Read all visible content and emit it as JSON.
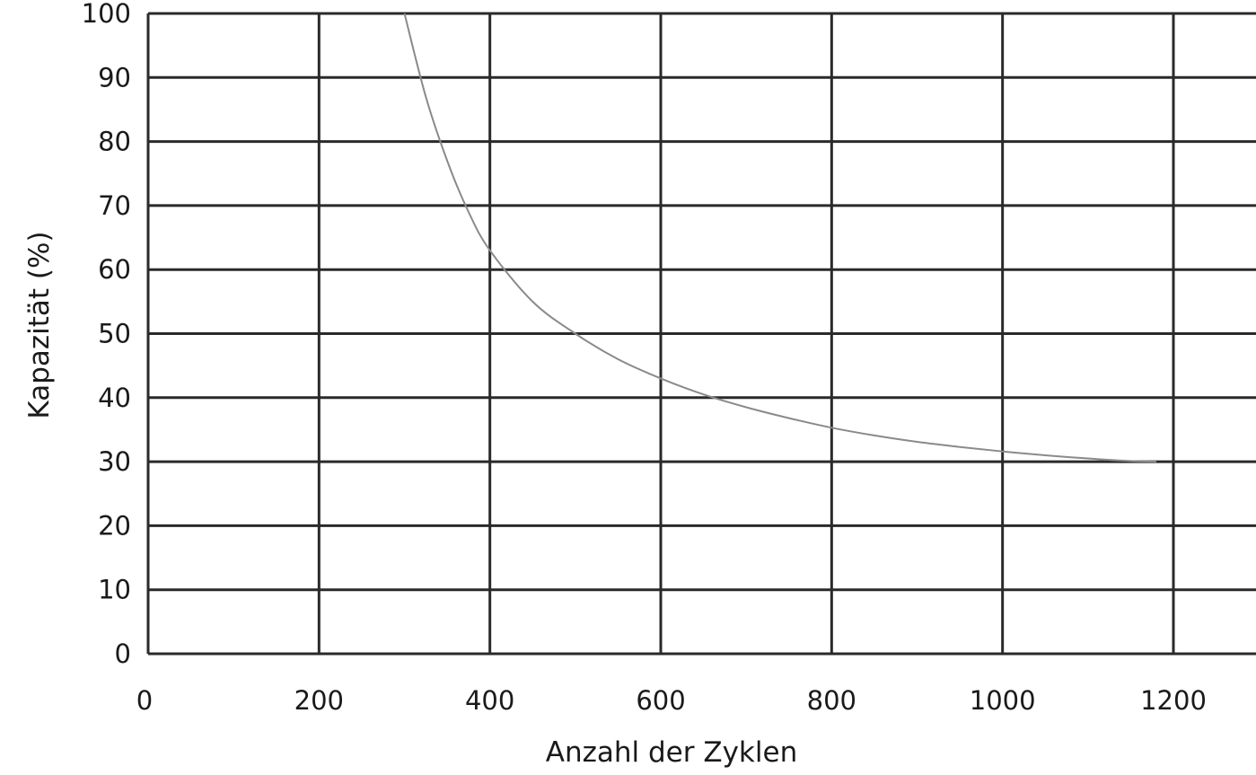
{
  "chart_data": {
    "type": "line",
    "title": "",
    "xlabel": "Anzahl der Zyklen",
    "ylabel": "Kapazität (%)",
    "xlim": [
      0,
      1300
    ],
    "ylim": [
      0,
      100
    ],
    "x_ticks": [
      0,
      200,
      400,
      600,
      800,
      1000,
      1200
    ],
    "y_ticks": [
      0,
      10,
      20,
      30,
      40,
      50,
      60,
      70,
      80,
      90,
      100
    ],
    "grid": true,
    "legend": "none",
    "colors": {
      "grid": "#2a2a2a",
      "line": "#8a8a8a",
      "text": "#1a1a1a"
    },
    "series": [
      {
        "x": [
          300,
          325,
          350,
          375,
          400,
          450,
          500,
          550,
          600,
          650,
          700,
          750,
          800,
          850,
          900,
          950,
          1000,
          1050,
          1100,
          1150,
          1180
        ],
        "y": [
          100,
          87,
          77,
          69,
          63,
          55,
          50,
          46,
          43,
          40.5,
          38.5,
          36.8,
          35.3,
          34.1,
          33.1,
          32.3,
          31.6,
          31.0,
          30.5,
          30.1,
          30.0
        ]
      }
    ]
  }
}
